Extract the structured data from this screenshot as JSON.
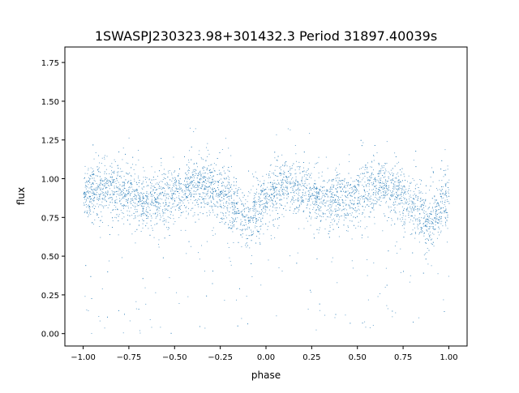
{
  "chart_data": {
    "type": "scatter",
    "title": "1SWASPJ230323.98+301432.3 Period 31897.40039s",
    "xlabel": "phase",
    "ylabel": "flux",
    "xlim": [
      -1.1,
      1.1
    ],
    "ylim": [
      -0.08,
      1.85
    ],
    "xticks": [
      -1.0,
      -0.75,
      -0.5,
      -0.25,
      0.0,
      0.25,
      0.5,
      0.75,
      1.0
    ],
    "xtick_labels": [
      "−1.00",
      "−0.75",
      "−0.50",
      "−0.25",
      "0.00",
      "0.25",
      "0.50",
      "0.75",
      "1.00"
    ],
    "yticks": [
      0.0,
      0.25,
      0.5,
      0.75,
      1.0,
      1.25,
      1.5,
      1.75
    ],
    "ytick_labels": [
      "0.00",
      "0.25",
      "0.50",
      "0.75",
      "1.00",
      "1.25",
      "1.50",
      "1.75"
    ],
    "grid": false,
    "point_color": "#1f77b4",
    "trend": {
      "x": [
        -1.0,
        -0.9,
        -0.8,
        -0.7,
        -0.6,
        -0.5,
        -0.4,
        -0.3,
        -0.2,
        -0.15,
        -0.12,
        -0.08,
        -0.03,
        0.05,
        0.15,
        0.25,
        0.35,
        0.45,
        0.6,
        0.7,
        0.8,
        0.85,
        0.88,
        0.92,
        0.96,
        1.0
      ],
      "y": [
        0.9,
        0.93,
        0.91,
        0.87,
        0.86,
        0.9,
        0.95,
        0.93,
        0.86,
        0.78,
        0.72,
        0.76,
        0.85,
        0.93,
        0.95,
        0.9,
        0.85,
        0.88,
        0.95,
        0.92,
        0.83,
        0.76,
        0.71,
        0.75,
        0.83,
        0.88
      ]
    },
    "scatter_spread": 0.09,
    "x_range_points": [
      -1.0,
      1.0
    ]
  }
}
